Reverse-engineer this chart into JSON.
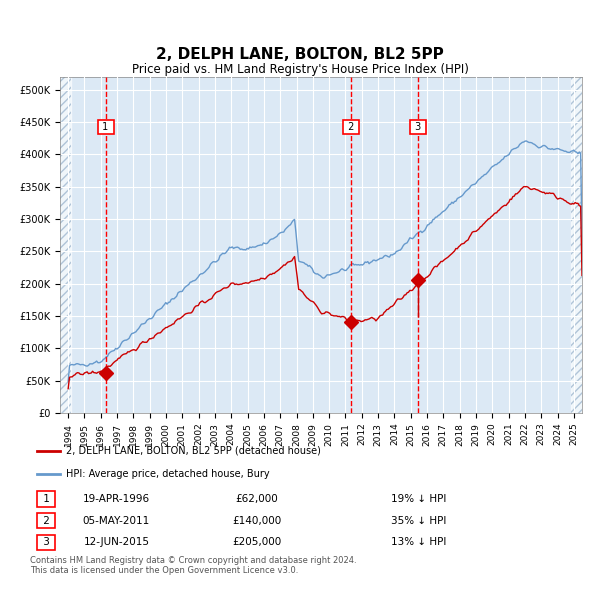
{
  "title": "2, DELPH LANE, BOLTON, BL2 5PP",
  "subtitle": "Price paid vs. HM Land Registry's House Price Index (HPI)",
  "bg_color": "#dce9f5",
  "plot_bg_color": "#dce9f5",
  "hatch_color": "#b0c4d8",
  "grid_color": "#ffffff",
  "red_line_color": "#cc0000",
  "blue_line_color": "#6699cc",
  "sale1_date": 1996.3,
  "sale1_price": 62000,
  "sale1_label": "19-APR-1996",
  "sale1_amount": "£62,000",
  "sale1_hpi": "19% ↓ HPI",
  "sale2_date": 2011.34,
  "sale2_price": 140000,
  "sale2_label": "05-MAY-2011",
  "sale2_amount": "£140,000",
  "sale2_hpi": "35% ↓ HPI",
  "sale3_date": 2015.44,
  "sale3_price": 205000,
  "sale3_label": "12-JUN-2015",
  "sale3_amount": "£205,000",
  "sale3_hpi": "13% ↓ HPI",
  "ylim_max": 520000,
  "xlim_min": 1993.5,
  "xlim_max": 2025.5,
  "footer1": "Contains HM Land Registry data © Crown copyright and database right 2024.",
  "footer2": "This data is licensed under the Open Government Licence v3.0.",
  "legend1": "2, DELPH LANE, BOLTON, BL2 5PP (detached house)",
  "legend2": "HPI: Average price, detached house, Bury"
}
